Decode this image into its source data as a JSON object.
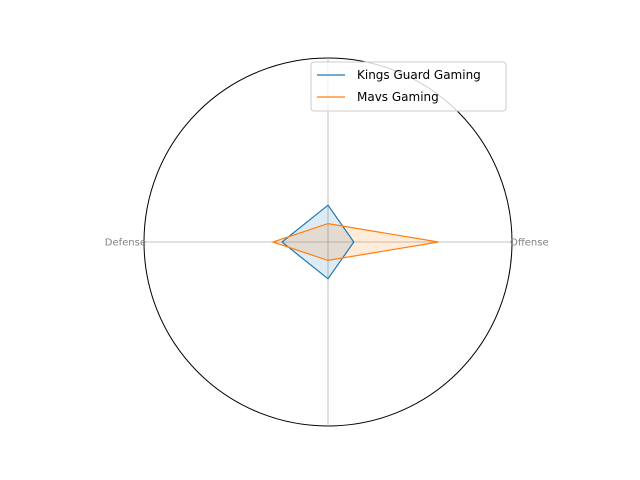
{
  "chart_data": {
    "type": "radar",
    "axes": [
      "Offense",
      "",
      "Defense",
      ""
    ],
    "rmax": 100,
    "series": [
      {
        "name": "Kings Guard Gaming",
        "values": [
          14,
          20,
          25,
          20
        ],
        "color": "#1f77b4",
        "fill": "#1f77b4"
      },
      {
        "name": "Mavs Gaming",
        "values": [
          60,
          10,
          30,
          10
        ],
        "color": "#ff7f0e",
        "fill": "#ff7f0e"
      }
    ],
    "legend_position": "top-right"
  }
}
